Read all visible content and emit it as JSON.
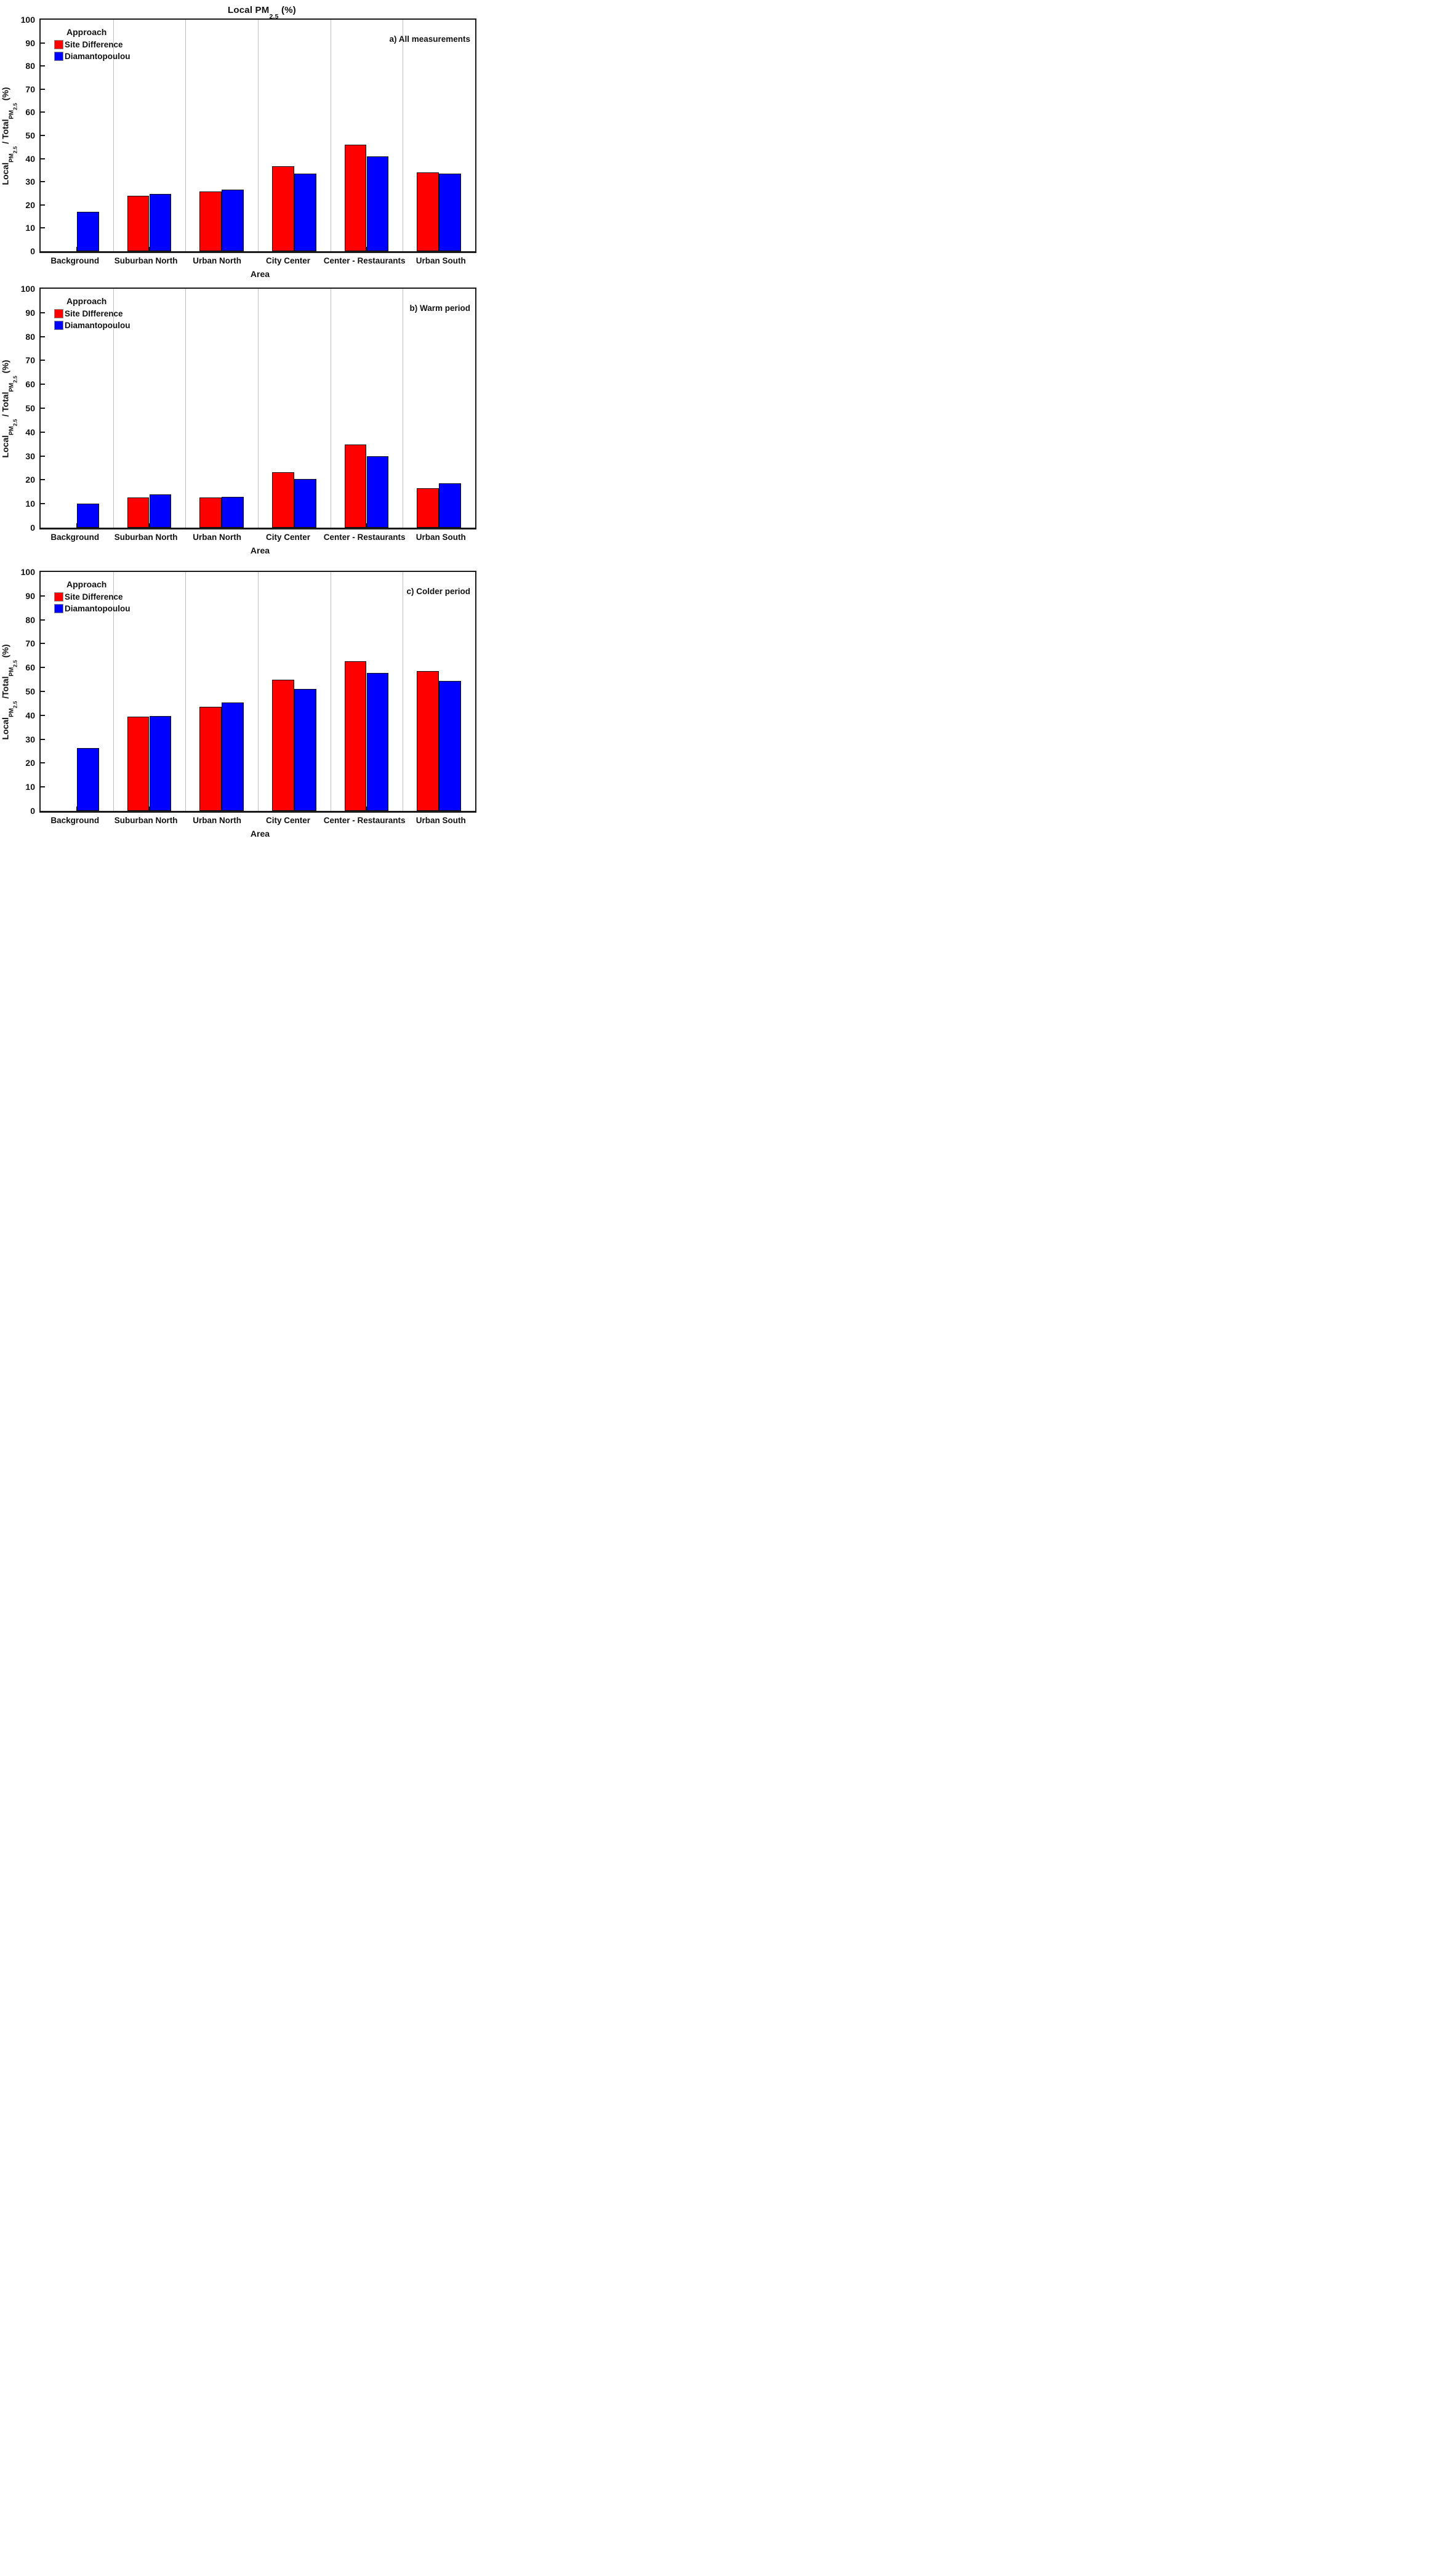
{
  "title": {
    "text_main": "Local PM",
    "text_sub": "2.5",
    "text_tail": " (%)"
  },
  "x_axis": {
    "label": "Area",
    "categories": [
      "Background",
      "Suburban North",
      "Urban North",
      "City Center",
      "Center - Restaurants",
      "Urban South"
    ]
  },
  "y_axis": {
    "ticks": [
      0,
      10,
      20,
      30,
      40,
      50,
      60,
      70,
      80,
      90,
      100
    ],
    "limits": [
      0,
      100
    ]
  },
  "colors": {
    "site_difference": "#ff0000",
    "diamantopoulou": "#0000ff",
    "grid": "#bfbfbf",
    "axis": "#1a1a1a"
  },
  "chart_data": [
    {
      "type": "bar",
      "panel": "a",
      "annotation": "a) All measurements",
      "legend_title": "Approach",
      "legend_position": "top-left",
      "grid": "vertical-only",
      "ylim": [
        0,
        100
      ],
      "ylabel": {
        "p1": "Local",
        "s1a": "PM",
        "s1b": "2.5",
        "mid": " / ",
        "p2": "Total",
        "s2a": "PM",
        "s2b": "2.5",
        "tail": "  (%)"
      },
      "categories": [
        "Background",
        "Suburban North",
        "Urban North",
        "City Center",
        "Center - Restaurants",
        "Urban South"
      ],
      "series": [
        {
          "name": "Site Difference",
          "color": "#ff0000",
          "values": [
            null,
            24.0,
            25.9,
            36.8,
            45.9,
            34.1
          ]
        },
        {
          "name": "Diamantopoulou",
          "color": "#0000ff",
          "values": [
            17.0,
            24.8,
            26.6,
            33.5,
            41.0,
            33.4
          ]
        }
      ]
    },
    {
      "type": "bar",
      "panel": "b",
      "annotation": "b) Warm period",
      "legend_title": "Approach",
      "legend_position": "top-left",
      "grid": "vertical-only",
      "ylim": [
        0,
        100
      ],
      "ylabel": {
        "p1": "Local",
        "s1a": "PM",
        "s1b": "2.5",
        "mid": " / ",
        "p2": "Total",
        "s2a": "PM",
        "s2b": "2.5",
        "tail": "  (%)"
      },
      "categories": [
        "Background",
        "Suburban North",
        "Urban North",
        "City Center",
        "Center - Restaurants",
        "Urban South"
      ],
      "series": [
        {
          "name": "Site DIfference",
          "color": "#ff0000",
          "values": [
            null,
            12.7,
            12.6,
            23.2,
            34.8,
            16.4
          ]
        },
        {
          "name": "Diamantopoulou",
          "color": "#0000ff",
          "values": [
            10.0,
            13.9,
            13.0,
            20.3,
            30.0,
            18.5
          ]
        }
      ]
    },
    {
      "type": "bar",
      "panel": "c",
      "annotation": "c) Colder period",
      "legend_title": "Approach",
      "legend_position": "top-left",
      "grid": "vertical-only",
      "ylim": [
        0,
        100
      ],
      "ylabel": {
        "p1": "Local",
        "s1a": "PM",
        "s1b": "2.5",
        "mid": " /",
        "p2": "Total",
        "s2a": "PM",
        "s2b": "2.5",
        "tail": " (%)"
      },
      "categories": [
        "Background",
        "Suburban North",
        "Urban North",
        "City Center",
        "Center - Restaurants",
        "Urban South"
      ],
      "series": [
        {
          "name": "Site Difference",
          "color": "#ff0000",
          "values": [
            null,
            39.4,
            43.6,
            54.8,
            62.6,
            58.6
          ]
        },
        {
          "name": "Diamantopoulou",
          "color": "#0000ff",
          "values": [
            26.3,
            39.8,
            45.4,
            51.0,
            57.8,
            54.5
          ]
        }
      ]
    }
  ]
}
